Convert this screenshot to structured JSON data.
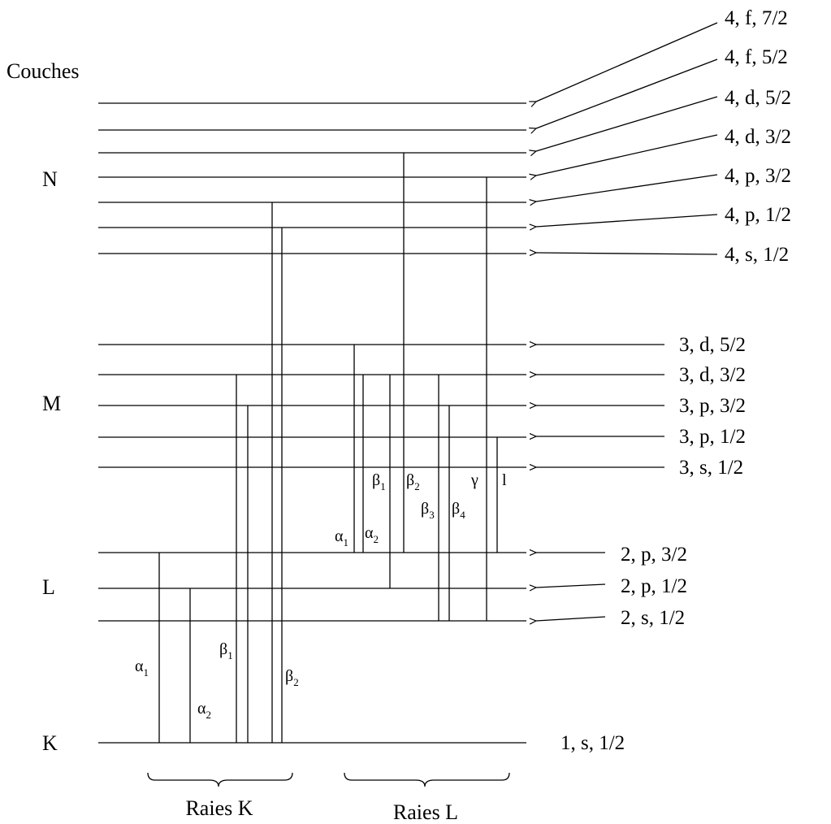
{
  "title": "Couches",
  "shells": [
    "N",
    "M",
    "L",
    "K"
  ],
  "levels": [
    "4, f, 7/2",
    "4, f, 5/2",
    "4, d, 5/2",
    "4, d, 3/2",
    "4, p, 3/2",
    "4, p, 1/2",
    "4, s, 1/2",
    "3, d, 5/2",
    "3, d, 3/2",
    "3, p, 3/2",
    "3, p, 1/2",
    "3, s, 1/2",
    "2, p, 3/2",
    "2, p, 1/2",
    "2, s, 1/2",
    "1, s, 1/2"
  ],
  "k_lines": [
    {
      "greek": "α",
      "sub": "1"
    },
    {
      "greek": "α",
      "sub": "2"
    },
    {
      "greek": "β",
      "sub": "1"
    },
    {
      "greek": "β",
      "sub": "2"
    }
  ],
  "l_lines": [
    {
      "greek": "α",
      "sub": "1"
    },
    {
      "greek": "α",
      "sub": "2"
    },
    {
      "greek": "β",
      "sub": "1"
    },
    {
      "greek": "β",
      "sub": "2"
    },
    {
      "greek": "β",
      "sub": "3"
    },
    {
      "greek": "β",
      "sub": "4"
    },
    {
      "greek": "γ",
      "sub": ""
    },
    {
      "greek": "l",
      "sub": ""
    }
  ],
  "groups": [
    "Raies K",
    "Raies L"
  ]
}
